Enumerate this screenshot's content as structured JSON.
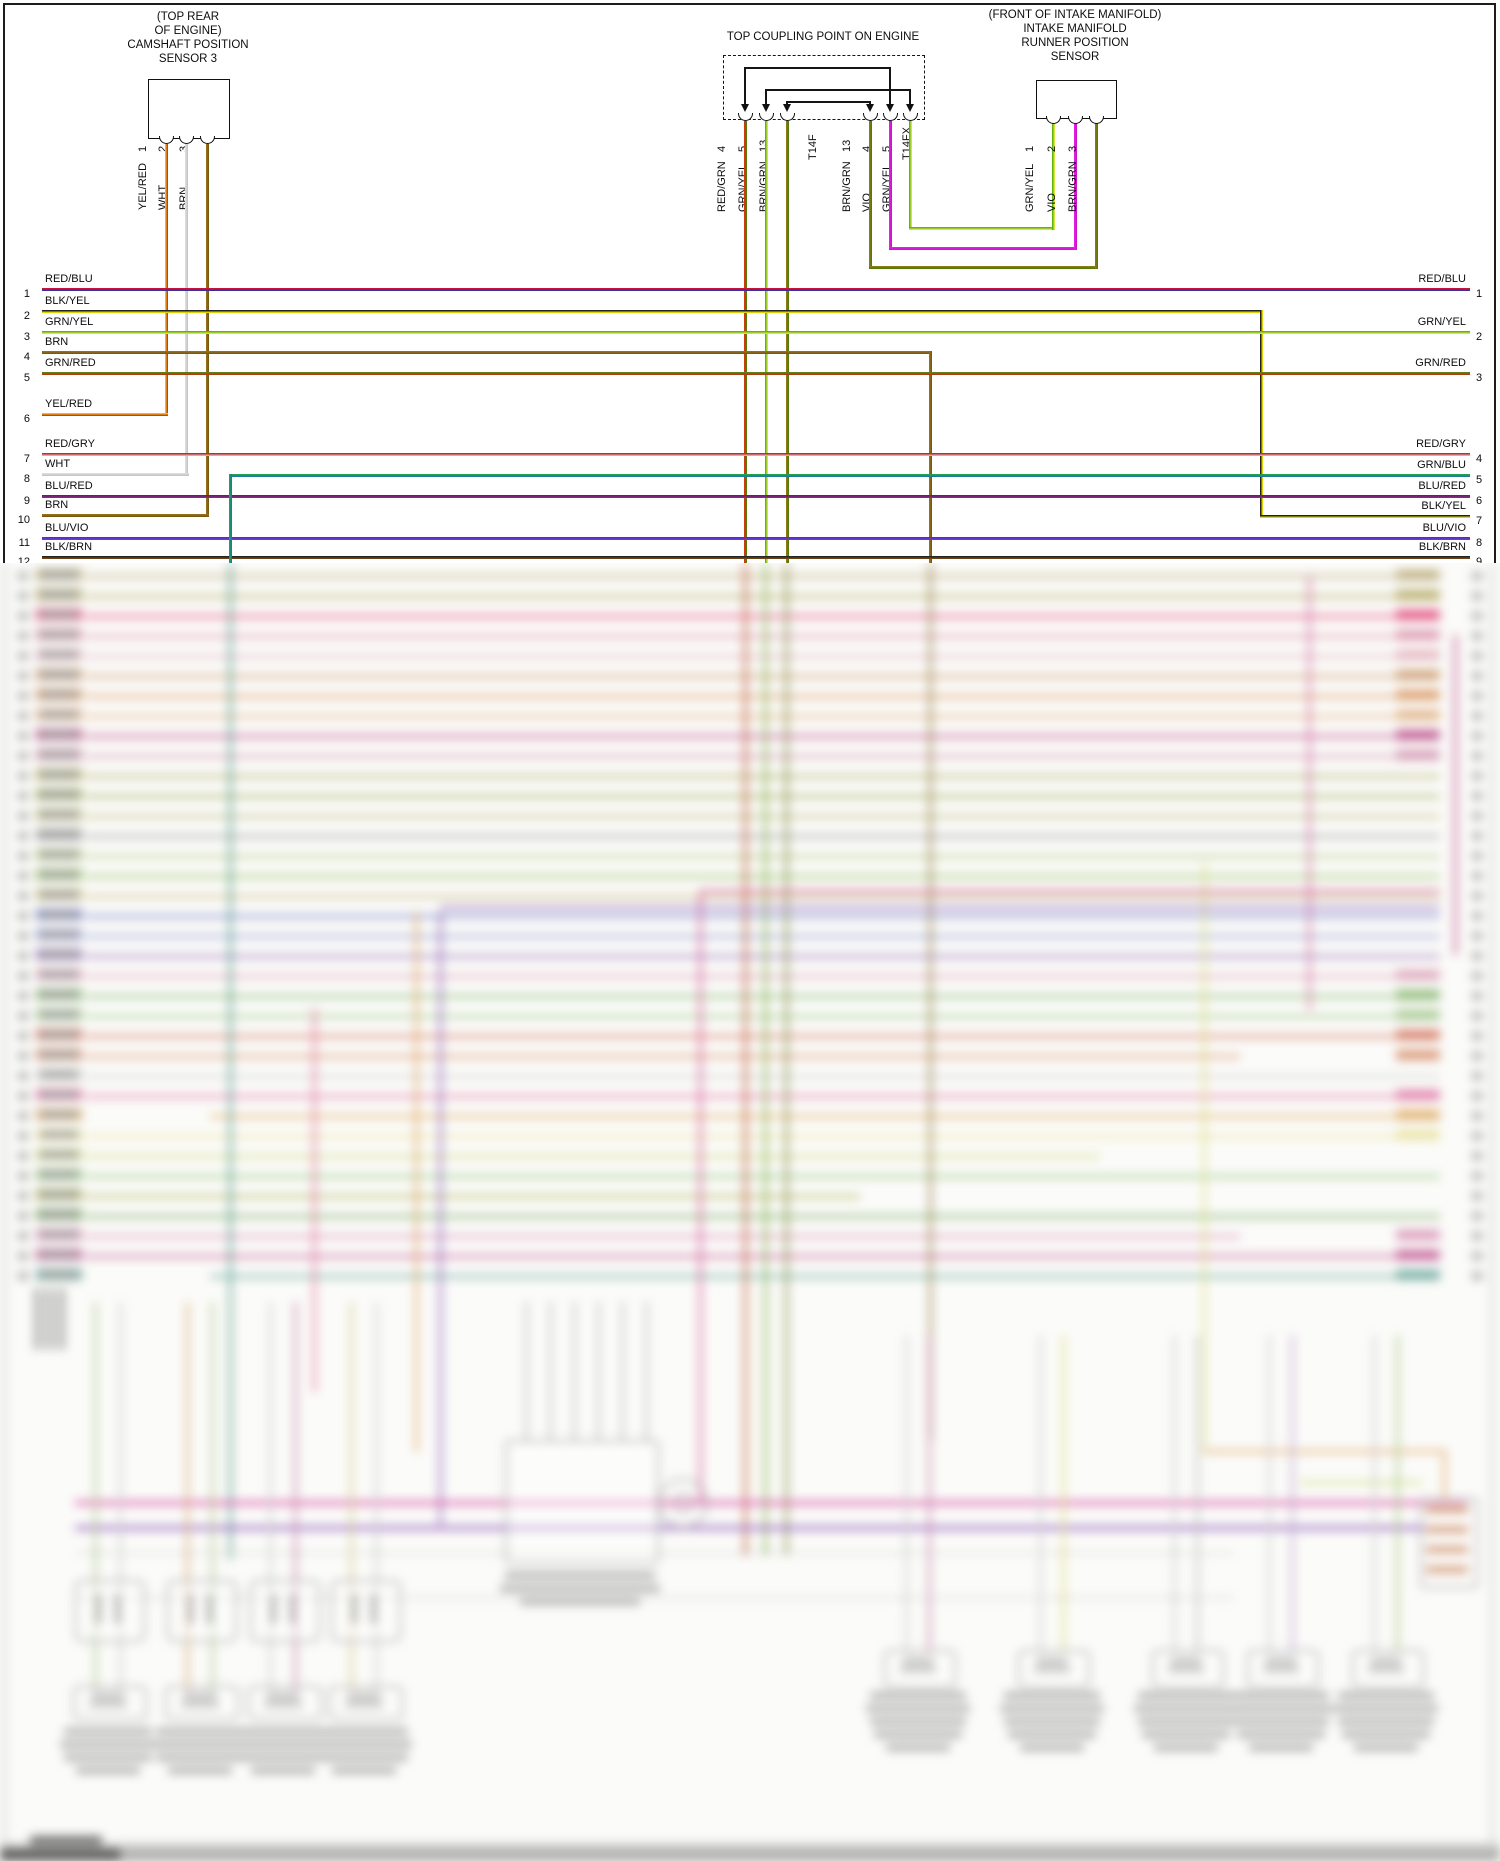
{
  "diagram": {
    "camshaft_sensor": {
      "label_lines": [
        "(TOP REAR",
        "OF ENGINE)",
        "CAMSHAFT POSITION",
        "SENSOR 3"
      ],
      "pins": [
        {
          "num": "1",
          "wire": "YEL/RED"
        },
        {
          "num": "2",
          "wire": "WHT"
        },
        {
          "num": "3",
          "wire": "BRN"
        }
      ]
    },
    "coupling_point": {
      "title": "TOP COUPLING POINT ON ENGINE",
      "left_pins": [
        {
          "num": "4",
          "wire": "RED/GRN"
        },
        {
          "num": "5",
          "wire": "GRN/YEL"
        },
        {
          "num": "13",
          "wire": "BRN/GRN"
        }
      ],
      "left_tag": "T14F",
      "right_pins": [
        {
          "num": "13",
          "wire": "BRN/GRN"
        },
        {
          "num": "4",
          "wire": "VIO"
        },
        {
          "num": "5",
          "wire": "GRN/YEL"
        }
      ],
      "right_tag": "T14FX"
    },
    "runner_sensor": {
      "label_lines": [
        "(FRONT OF INTAKE MANIFOLD)",
        "INTAKE MANIFOLD",
        "RUNNER POSITION",
        "SENSOR"
      ],
      "pins": [
        {
          "num": "1",
          "wire": "GRN/YEL"
        },
        {
          "num": "2",
          "wire": "VIO"
        },
        {
          "num": "3",
          "wire": "BRN/GRN"
        }
      ]
    },
    "left_rows": [
      {
        "num": "1",
        "label": "RED/BLU"
      },
      {
        "num": "2",
        "label": "BLK/YEL"
      },
      {
        "num": "3",
        "label": "GRN/YEL"
      },
      {
        "num": "4",
        "label": "BRN"
      },
      {
        "num": "5",
        "label": "GRN/RED"
      },
      {
        "num": "6",
        "label": "YEL/RED"
      },
      {
        "num": "7",
        "label": "RED/GRY"
      },
      {
        "num": "8",
        "label": "WHT"
      },
      {
        "num": "9",
        "label": "BLU/RED"
      },
      {
        "num": "10",
        "label": "BRN"
      },
      {
        "num": "11",
        "label": "BLU/VIO"
      },
      {
        "num": "12",
        "label": "BLK/BRN"
      }
    ],
    "right_rows": [
      {
        "num": "1",
        "label": "RED/BLU"
      },
      {
        "num": "2",
        "label": "GRN/YEL"
      },
      {
        "num": "3",
        "label": "GRN/RED"
      },
      {
        "num": "4",
        "label": "RED/GRY"
      },
      {
        "num": "5",
        "label": "GRN/BLU"
      },
      {
        "num": "6",
        "label": "BLU/RED"
      },
      {
        "num": "7",
        "label": "BLK/YEL"
      },
      {
        "num": "8",
        "label": "BLU/VIO"
      },
      {
        "num": "9",
        "label": "BLK/BRN"
      }
    ],
    "wire_colors": {
      "RED/BLU": [
        "#c81238",
        "#38309e"
      ],
      "BLK/YEL": [
        "#222222",
        "#ddd600"
      ],
      "GRN/YEL": [
        "#5cb514",
        "#dce23c"
      ],
      "BRN": [
        "#92701c",
        "#7a5a10"
      ],
      "GRN/RED": [
        "#5d8114",
        "#b03c14"
      ],
      "YEL/RED": [
        "#e9bd1a",
        "#d23c10"
      ],
      "RED/GRY": [
        "#da2020",
        "#b8b8b8"
      ],
      "WHT": [
        "#dcdcdc",
        "#c6c6c6"
      ],
      "BLU/RED": [
        "#3028cc",
        "#c02020"
      ],
      "BLU/VIO": [
        "#3a3ad2",
        "#8c2ad2"
      ],
      "BLK/BRN": [
        "#262626",
        "#6e4414"
      ],
      "GRN/BLU": [
        "#20a050",
        "#207aa0"
      ],
      "RED/GRN": [
        "#ce3a10",
        "#567a0a"
      ],
      "BRN/GRN": [
        "#8a7a14",
        "#567a0a"
      ],
      "VIO": [
        "#e41ee4",
        "#cc14cc"
      ]
    }
  },
  "blurred_section": {
    "description": "out-of-focus lower portion of wiring diagram (text illegible)",
    "row_colors": [
      "#b8a25c",
      "#b0a040",
      "#ff2d72",
      "#e883a8",
      "#eaa8b8",
      "#d39055",
      "#e58a42",
      "#eaa668",
      "#cc3585",
      "#da86ac",
      "#a4a444",
      "#94a434",
      "#b4b464",
      "#949494",
      "#a6c468",
      "#84bc44",
      "#c4b464",
      "#6474d4",
      "#8494dc",
      "#9464c4",
      "#e494b4",
      "#74b454",
      "#94c474",
      "#e46444",
      "#e48454",
      "#cccccc",
      "#f464a4",
      "#eaa444",
      "#eae084",
      "#ccd464",
      "#84c464",
      "#a4ac34",
      "#64a444",
      "#e484b4",
      "#d44494",
      "#54a494"
    ]
  }
}
